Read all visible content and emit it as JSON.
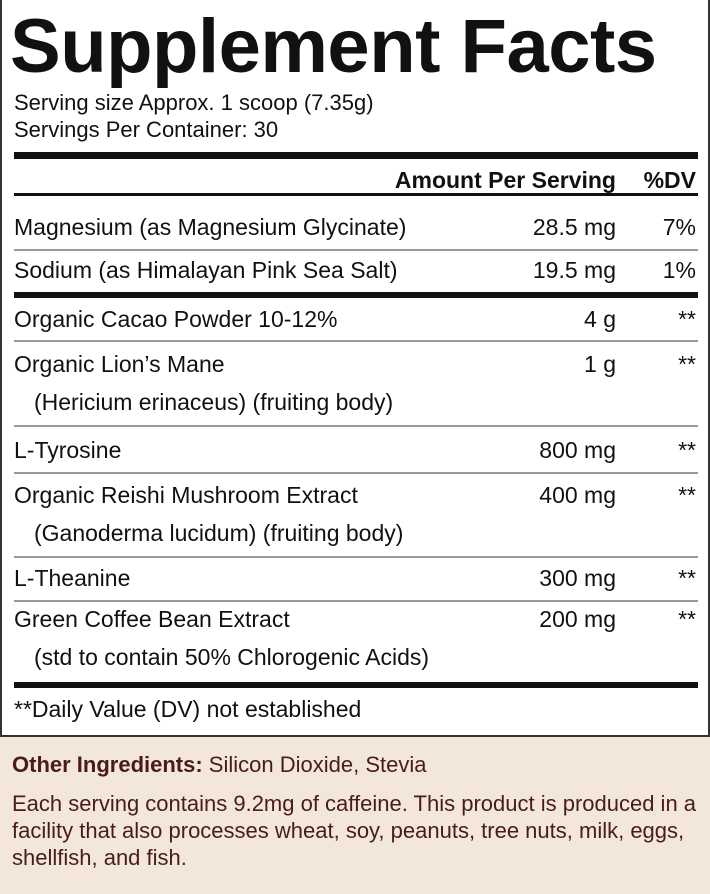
{
  "title": "Supplement Facts",
  "serving_size": "Serving size Approx. 1 scoop (7.35g)",
  "servings_per_container": "Servings Per Container: 30",
  "header": {
    "amount": "Amount Per Serving",
    "dv": "%DV"
  },
  "rows": [
    {
      "name": "Magnesium (as Magnesium Glycinate)",
      "amount": "28.5 mg",
      "dv": "7%"
    },
    {
      "name": "Sodium (as Himalayan Pink Sea Salt)",
      "amount": "19.5 mg",
      "dv": "1%"
    },
    {
      "name": "Organic Cacao Powder 10-12%",
      "amount": "4 g",
      "dv": "**"
    },
    {
      "name": "Organic Lion’s Mane",
      "sub": "(Hericium erinaceus) (fruiting body)",
      "amount": "1 g",
      "dv": "**"
    },
    {
      "name": "L-Tyrosine",
      "amount": "800 mg",
      "dv": "**"
    },
    {
      "name": "Organic Reishi Mushroom Extract",
      "sub": "(Ganoderma lucidum) (fruiting body)",
      "amount": "400 mg",
      "dv": "**"
    },
    {
      "name": "L-Theanine",
      "amount": "300 mg",
      "dv": "**"
    },
    {
      "name": "Green Coffee Bean Extract",
      "sub": "(std to contain 50% Chlorogenic Acids)",
      "amount": "200 mg",
      "dv": "**"
    }
  ],
  "footnote": "**Daily Value (DV) not established",
  "other_ingredients": {
    "label": "Other Ingredients:",
    "value": " Silicon Dioxide, Stevia"
  },
  "caffeine_note": "Each serving contains 9.2mg of caffeine. This product is produced in a facility that also processes wheat, soy, peanuts, tree nuts, milk, eggs, shellfish, and fish.",
  "colors": {
    "background": "#f3e7d9",
    "text_brown": "#4a1c18",
    "label_bg": "#ffffff"
  }
}
